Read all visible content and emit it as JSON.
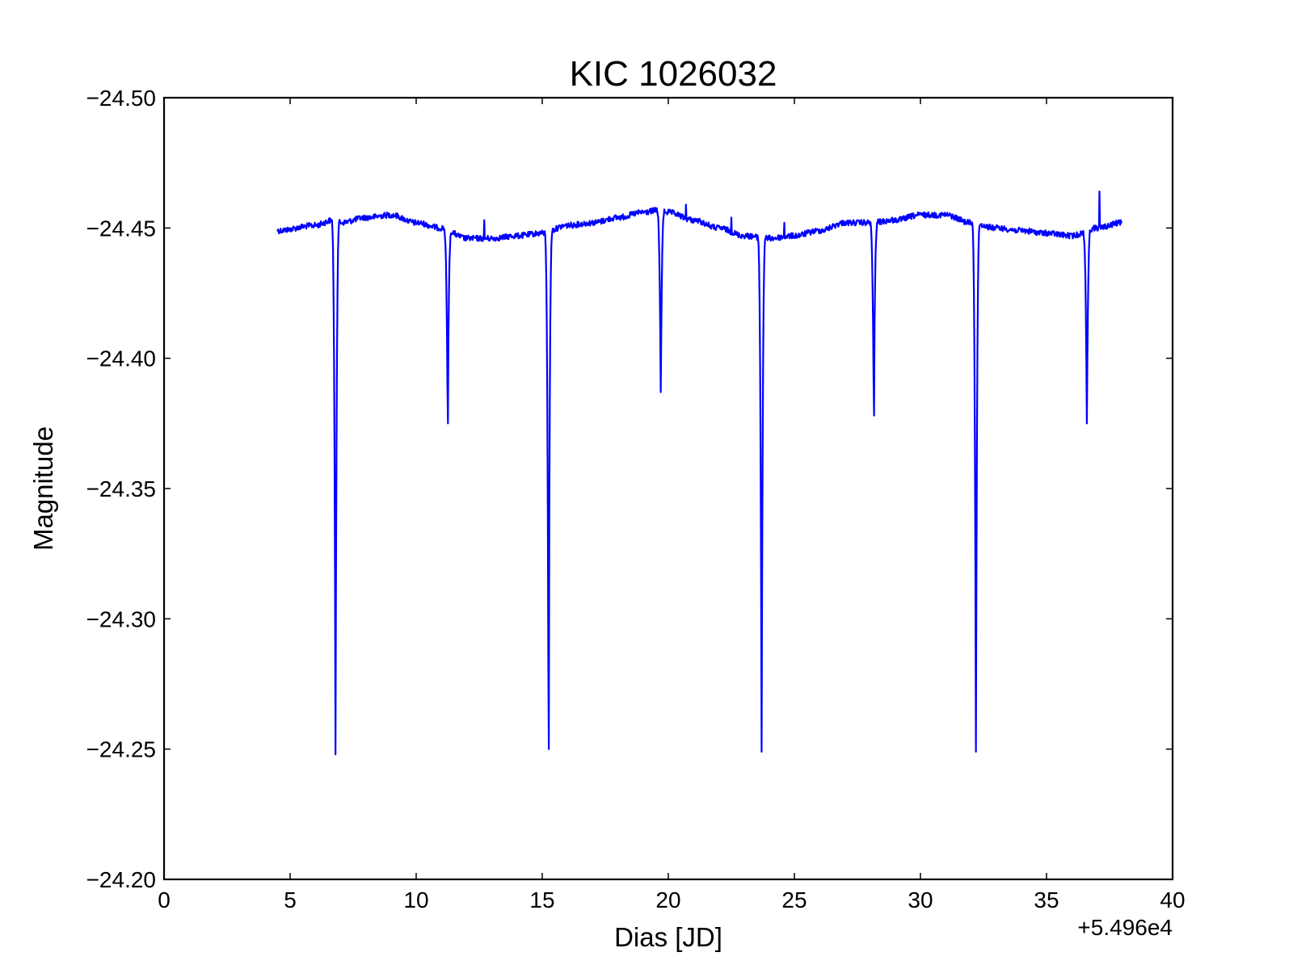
{
  "chart_data": {
    "type": "line",
    "title": "KIC 1026032",
    "xlabel": "Dias [JD]",
    "ylabel": "Magnitude",
    "x_offset_label": "+5.496e4",
    "xlim": [
      0,
      40
    ],
    "ylim": [
      -24.5,
      -24.2
    ],
    "y_inverted": true,
    "x_ticks": [
      0,
      5,
      10,
      15,
      20,
      25,
      30,
      35,
      40
    ],
    "x_tick_labels": [
      "0",
      "5",
      "10",
      "15",
      "20",
      "25",
      "30",
      "35",
      "40"
    ],
    "y_ticks": [
      -24.5,
      -24.45,
      -24.4,
      -24.35,
      -24.3,
      -24.25,
      -24.2
    ],
    "y_tick_labels": [
      "−24.50",
      "−24.45",
      "−24.40",
      "−24.35",
      "−24.30",
      "−24.25",
      "−24.20"
    ],
    "grid": false,
    "series": [
      {
        "name": "KIC 1026032",
        "color": "#0000ff",
        "x_start": 4.5,
        "x_end": 38.0,
        "baseline_knots": [
          [
            4.5,
            -24.449
          ],
          [
            6.0,
            -24.451
          ],
          [
            6.7,
            -24.453
          ],
          [
            7.0,
            -24.452
          ],
          [
            8.0,
            -24.454
          ],
          [
            9.0,
            -24.455
          ],
          [
            10.0,
            -24.452
          ],
          [
            11.0,
            -24.45
          ],
          [
            12.0,
            -24.446
          ],
          [
            13.0,
            -24.446
          ],
          [
            14.0,
            -24.447
          ],
          [
            15.0,
            -24.448
          ],
          [
            16.0,
            -24.451
          ],
          [
            17.0,
            -24.452
          ],
          [
            18.0,
            -24.454
          ],
          [
            19.0,
            -24.456
          ],
          [
            19.7,
            -24.457
          ],
          [
            20.0,
            -24.456
          ],
          [
            21.0,
            -24.453
          ],
          [
            22.0,
            -24.45
          ],
          [
            23.0,
            -24.447
          ],
          [
            24.0,
            -24.446
          ],
          [
            25.0,
            -24.447
          ],
          [
            26.0,
            -24.449
          ],
          [
            27.0,
            -24.452
          ],
          [
            28.0,
            -24.452
          ],
          [
            29.0,
            -24.453
          ],
          [
            30.0,
            -24.455
          ],
          [
            31.0,
            -24.455
          ],
          [
            32.0,
            -24.452
          ],
          [
            33.0,
            -24.45
          ],
          [
            34.0,
            -24.449
          ],
          [
            35.0,
            -24.448
          ],
          [
            36.0,
            -24.447
          ],
          [
            37.0,
            -24.45
          ],
          [
            38.0,
            -24.452
          ]
        ],
        "dips": [
          {
            "center": 6.8,
            "depth": -24.248
          },
          {
            "center": 11.25,
            "depth": -24.375
          },
          {
            "center": 15.25,
            "depth": -24.25
          },
          {
            "center": 19.7,
            "depth": -24.387
          },
          {
            "center": 23.7,
            "depth": -24.249
          },
          {
            "center": 28.15,
            "depth": -24.378
          },
          {
            "center": 32.2,
            "depth": -24.249
          },
          {
            "center": 36.6,
            "depth": -24.375
          }
        ],
        "spikes": [
          {
            "x": 37.1,
            "y": -24.464
          },
          {
            "x": 20.7,
            "y": -24.459
          },
          {
            "x": 12.7,
            "y": -24.453
          },
          {
            "x": 22.5,
            "y": -24.454
          },
          {
            "x": 24.6,
            "y": -24.452
          }
        ]
      }
    ]
  }
}
